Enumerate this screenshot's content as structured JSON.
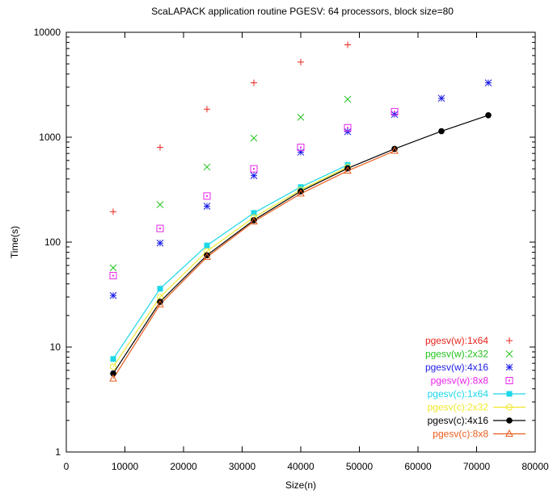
{
  "chart_data": {
    "type": "scatter",
    "title": "ScaLAPACK application routine PGESV: 64 processors, block size=80",
    "xlabel": "Size(n)",
    "ylabel": "Time(s)",
    "xlim": [
      0,
      80000
    ],
    "ylim": [
      1,
      10000
    ],
    "yscale": "log",
    "grid": false,
    "legend_position": "bottom-right",
    "x_ticks": [
      0,
      10000,
      20000,
      30000,
      40000,
      50000,
      60000,
      70000,
      80000
    ],
    "x_tick_labels": [
      "0",
      "10000",
      "20000",
      "30000",
      "40000",
      "50000",
      "60000",
      "70000",
      "80000"
    ],
    "y_ticks": [
      1,
      10,
      100,
      1000,
      10000
    ],
    "y_tick_labels": [
      "1",
      "10",
      "100",
      "1000",
      "10000"
    ],
    "series": [
      {
        "name": "pgesv(w):1x64",
        "color": "#e8241c",
        "marker": "plus",
        "line": false,
        "x": [
          8000,
          16000,
          24000,
          32000,
          40000,
          48000
        ],
        "y": [
          195,
          800,
          1850,
          3300,
          5200,
          7600
        ]
      },
      {
        "name": "pgesv(w):2x32",
        "color": "#22c41c",
        "marker": "cross",
        "line": false,
        "x": [
          8000,
          16000,
          24000,
          32000,
          40000,
          48000
        ],
        "y": [
          57,
          228,
          520,
          980,
          1550,
          2300
        ]
      },
      {
        "name": "pgesv(w):4x16",
        "color": "#1c1ce8",
        "marker": "star",
        "line": false,
        "x": [
          8000,
          16000,
          24000,
          32000,
          40000,
          48000,
          56000,
          64000,
          72000
        ],
        "y": [
          31,
          98,
          220,
          430,
          720,
          1130,
          1650,
          2350,
          3300
        ]
      },
      {
        "name": "pgesv(w):8x8",
        "color": "#e824e8",
        "marker": "open-square",
        "line": false,
        "x": [
          8000,
          16000,
          24000,
          32000,
          40000,
          48000,
          56000
        ],
        "y": [
          48,
          135,
          275,
          500,
          800,
          1230,
          1750
        ]
      },
      {
        "name": "pgesv(c):1x64",
        "color": "#1cd8e8",
        "marker": "filled-square",
        "line": true,
        "x": [
          8000,
          16000,
          24000,
          32000,
          40000,
          48000
        ],
        "y": [
          7.7,
          36,
          93,
          190,
          335,
          545
        ]
      },
      {
        "name": "pgesv(c):2x32",
        "color": "#f0e82c",
        "marker": "open-circle",
        "line": true,
        "x": [
          8000,
          16000,
          24000,
          32000,
          40000,
          48000
        ],
        "y": [
          6.5,
          30,
          82,
          172,
          315,
          520
        ]
      },
      {
        "name": "pgesv(c):4x16",
        "color": "#000000",
        "marker": "filled-circle",
        "line": true,
        "x": [
          8000,
          16000,
          24000,
          32000,
          40000,
          48000,
          56000,
          64000,
          72000
        ],
        "y": [
          5.6,
          27,
          75,
          162,
          305,
          505,
          775,
          1140,
          1620
        ]
      },
      {
        "name": "pgesv(c):8x8",
        "color": "#e85c1c",
        "marker": "open-triangle",
        "line": true,
        "x": [
          8000,
          16000,
          24000,
          32000,
          40000,
          48000,
          56000
        ],
        "y": [
          5.0,
          25.5,
          72,
          157,
          290,
          478,
          740
        ]
      }
    ]
  }
}
